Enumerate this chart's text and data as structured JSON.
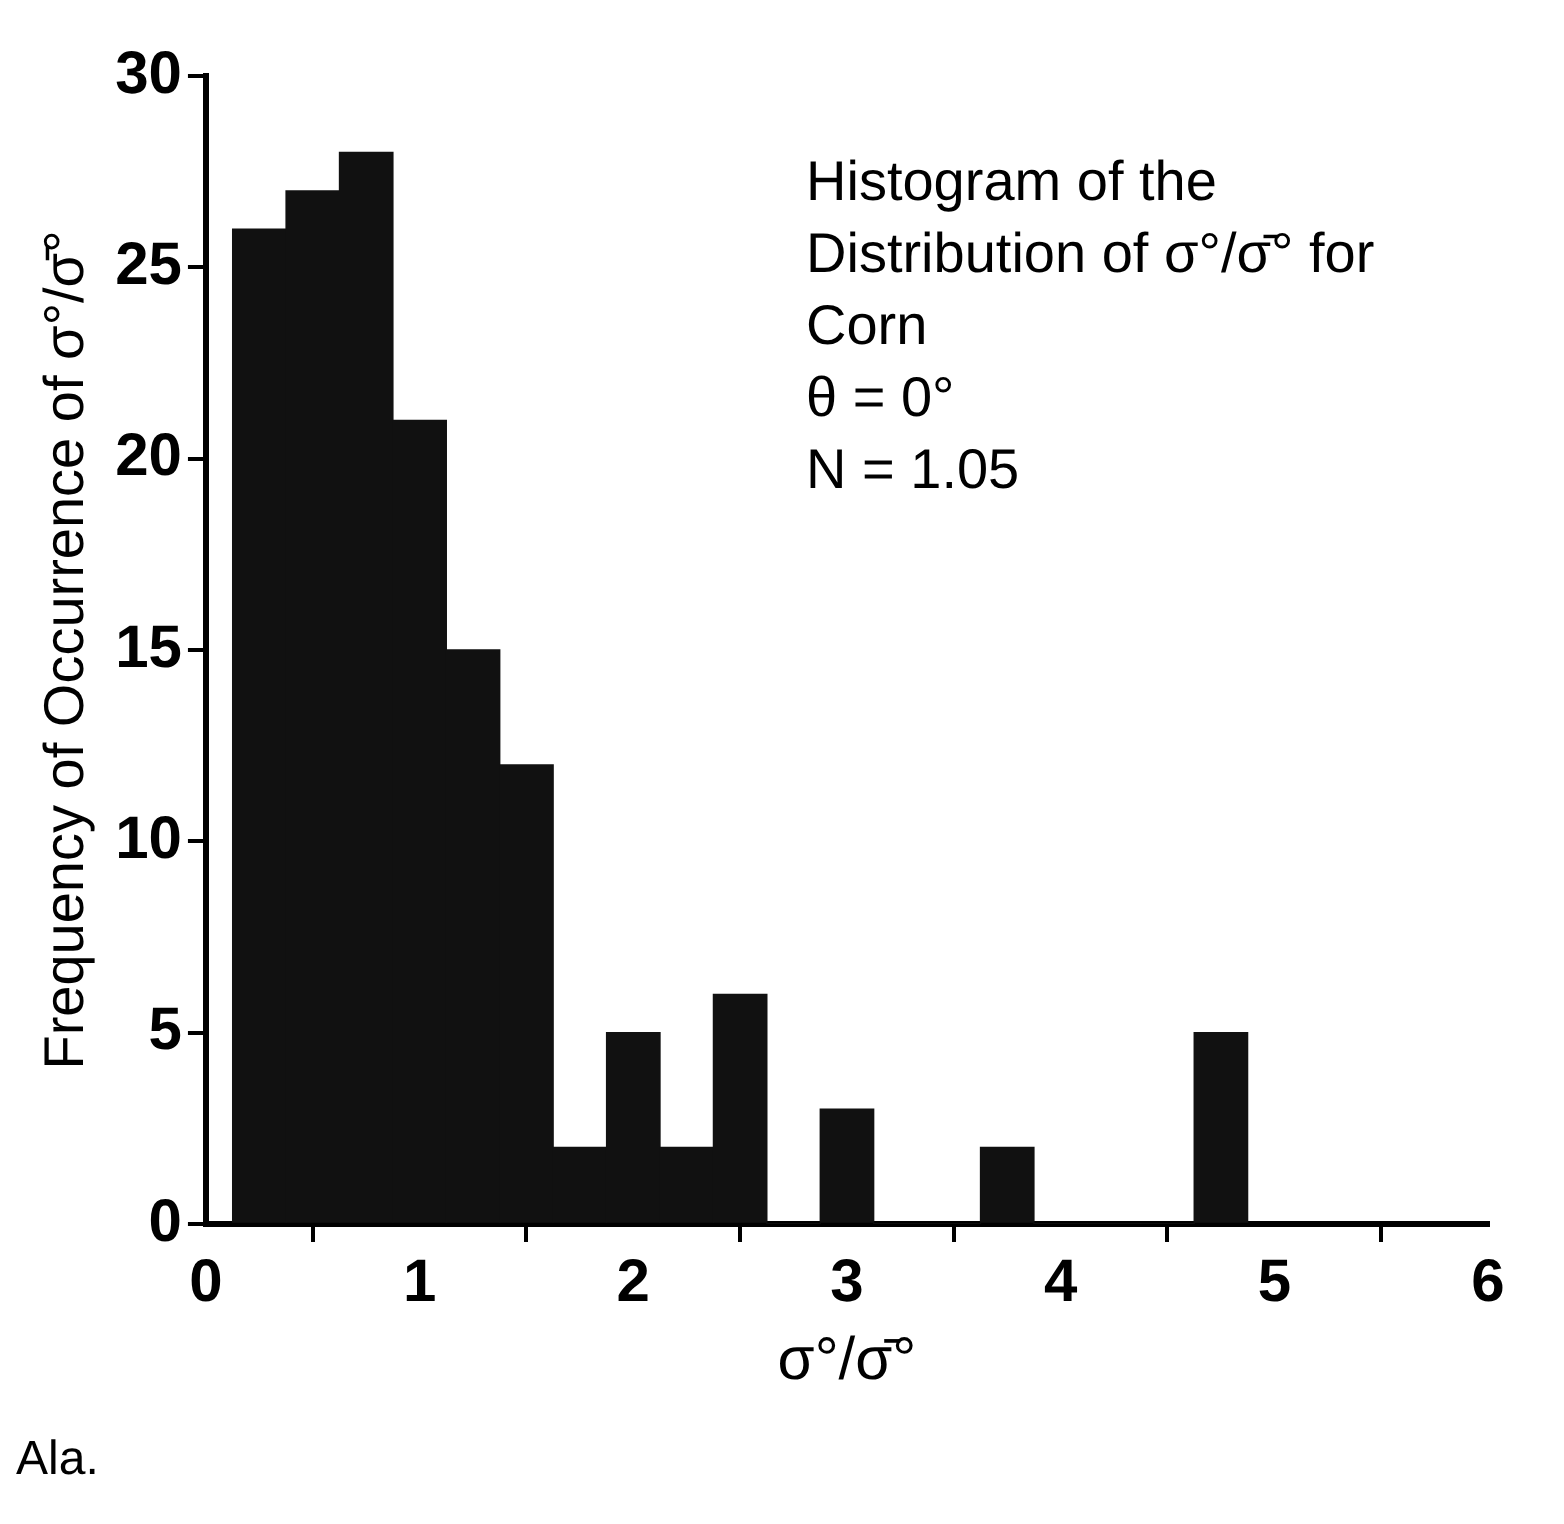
{
  "chart_data": {
    "type": "histogram",
    "title": "Histogram of the Distribution of σ°/σ̄° for Corn",
    "xlabel": "σ°/σ̄°",
    "ylabel": "Frequency of Occurrence of σ°/σ̄°",
    "annotations": [
      "θ = 0°",
      "N = 1.05",
      "Ala."
    ],
    "bins": [
      0.125,
      0.375,
      0.625,
      0.875,
      1.125,
      1.375,
      1.625,
      1.875,
      2.125,
      2.375,
      2.625,
      2.875,
      3.125,
      3.375,
      3.625,
      3.875,
      4.125,
      4.375,
      4.625,
      4.875
    ],
    "values": [
      26,
      27,
      28,
      21,
      15,
      12,
      2,
      5,
      2,
      6,
      0,
      3,
      0,
      0,
      2,
      0,
      0,
      0,
      5
    ],
    "color": "#111111",
    "xlim": [
      0,
      6
    ],
    "xticks": [
      0,
      1,
      2,
      3,
      4,
      5,
      6
    ],
    "ylim": [
      0,
      30
    ],
    "yticks": [
      0,
      5,
      10,
      15,
      20,
      25,
      30
    ],
    "grid": false,
    "legend": false
  }
}
